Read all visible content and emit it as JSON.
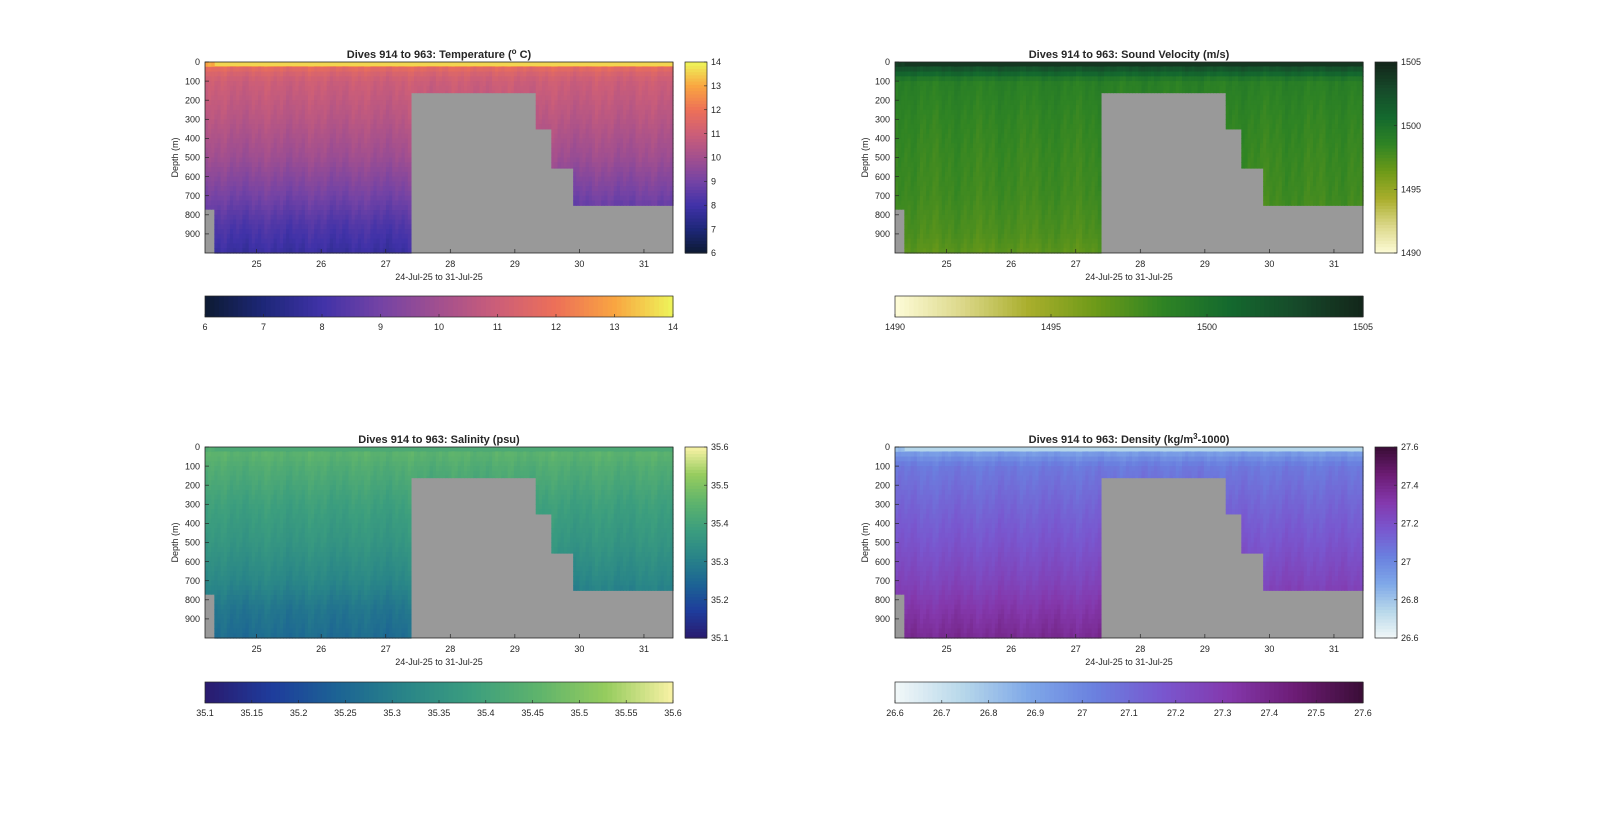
{
  "chart_data": [
    {
      "type": "heatmap",
      "title": "Dives 914 to 963: Temperature (° C)",
      "title_parts": {
        "pre": "Dives 914 to 963: Temperature (",
        "sup": "o",
        "post": " C)"
      },
      "xlabel": "24-Jul-25 to 31-Jul-25",
      "ylabel": "Depth (m)",
      "xlim": [
        24.2,
        31.45
      ],
      "ylim": [
        0,
        1000
      ],
      "x_ticks": [
        25,
        26,
        27,
        28,
        29,
        30,
        31
      ],
      "y_ticks": [
        0,
        100,
        200,
        300,
        400,
        500,
        600,
        700,
        800,
        900
      ],
      "colorbar_v": {
        "range": [
          6,
          14
        ],
        "ticks": [
          6,
          7,
          8,
          9,
          10,
          11,
          12,
          13,
          14
        ]
      },
      "colorbar_h": {
        "range": [
          6,
          14
        ],
        "ticks": [
          6,
          7,
          8,
          9,
          10,
          11,
          12,
          13,
          14
        ]
      },
      "colormap": [
        "#0d1a32",
        "#1d2778",
        "#4032a8",
        "#7443a5",
        "#a24f8f",
        "#cc5e78",
        "#ed7058",
        "#f9a541",
        "#eef55a"
      ],
      "surface_value": 13.6,
      "value_profile": [
        [
          0,
          13.6
        ],
        [
          40,
          11.5
        ],
        [
          100,
          11.0
        ],
        [
          300,
          10.5
        ],
        [
          500,
          9.9
        ],
        [
          700,
          9.0
        ],
        [
          850,
          8.3
        ],
        [
          1000,
          7.8
        ]
      ],
      "nodata_color": "#999999"
    },
    {
      "type": "heatmap",
      "title": "Dives 914 to 963: Sound Velocity (m/s)",
      "title_parts": {
        "pre": "Dives 914 to 963: Sound Velocity (m/s)",
        "sup": "",
        "post": ""
      },
      "xlabel": "24-Jul-25 to 31-Jul-25",
      "ylabel": "Depth (m)",
      "xlim": [
        24.2,
        31.45
      ],
      "ylim": [
        0,
        1000
      ],
      "x_ticks": [
        25,
        26,
        27,
        28,
        29,
        30,
        31
      ],
      "y_ticks": [
        0,
        100,
        200,
        300,
        400,
        500,
        600,
        700,
        800,
        900
      ],
      "colorbar_v": {
        "range": [
          1490,
          1505
        ],
        "ticks": [
          1490,
          1495,
          1500,
          1505
        ]
      },
      "colorbar_h": {
        "range": [
          1490,
          1505
        ],
        "ticks": [
          1490,
          1495,
          1500,
          1505
        ]
      },
      "colormap": [
        "#fefcd8",
        "#dcd88a",
        "#a9ae2c",
        "#6d9a18",
        "#2f8424",
        "#14692e",
        "#164a2a",
        "#13261a"
      ],
      "surface_value": 1504.0,
      "value_profile": [
        [
          0,
          1504
        ],
        [
          40,
          1502
        ],
        [
          100,
          1499
        ],
        [
          300,
          1498.5
        ],
        [
          500,
          1498.2
        ],
        [
          700,
          1498
        ],
        [
          900,
          1497.5
        ],
        [
          1000,
          1497
        ]
      ],
      "nodata_color": "#999999"
    },
    {
      "type": "heatmap",
      "title": "Dives 914 to 963: Salinity (psu)",
      "title_parts": {
        "pre": "Dives 914 to 963: Salinity (psu)",
        "sup": "",
        "post": ""
      },
      "xlabel": "24-Jul-25 to 31-Jul-25",
      "ylabel": "Depth (m)",
      "xlim": [
        24.2,
        31.45
      ],
      "ylim": [
        0,
        1000
      ],
      "x_ticks": [
        25,
        26,
        27,
        28,
        29,
        30,
        31
      ],
      "y_ticks": [
        0,
        100,
        200,
        300,
        400,
        500,
        600,
        700,
        800,
        900
      ],
      "colorbar_v": {
        "range": [
          35.1,
          35.6
        ],
        "ticks": [
          35.1,
          35.2,
          35.3,
          35.4,
          35.5,
          35.6
        ]
      },
      "colorbar_h": {
        "range": [
          35.1,
          35.6
        ],
        "ticks": [
          35.1,
          35.15,
          35.2,
          35.25,
          35.3,
          35.35,
          35.4,
          35.45,
          35.5,
          35.55,
          35.6
        ]
      },
      "colormap": [
        "#2a1a6e",
        "#1e3c9c",
        "#1c6494",
        "#298588",
        "#3c9e7e",
        "#5fb46c",
        "#96cc5e",
        "#f9f2a6"
      ],
      "surface_value": 35.42,
      "value_profile": [
        [
          0,
          35.42
        ],
        [
          40,
          35.45
        ],
        [
          100,
          35.43
        ],
        [
          300,
          35.39
        ],
        [
          500,
          35.36
        ],
        [
          700,
          35.32
        ],
        [
          850,
          35.28
        ],
        [
          1000,
          35.26
        ]
      ],
      "nodata_color": "#999999"
    },
    {
      "type": "heatmap",
      "title": "Dives 914 to 963: Density (kg/m³-1000)",
      "title_parts": {
        "pre": "Dives 914 to 963: Density (kg/m",
        "sup": "3",
        "post": "-1000)"
      },
      "xlabel": "24-Jul-25 to 31-Jul-25",
      "ylabel": "Depth (m)",
      "xlim": [
        24.2,
        31.45
      ],
      "ylim": [
        0,
        1000
      ],
      "x_ticks": [
        25,
        26,
        27,
        28,
        29,
        30,
        31
      ],
      "y_ticks": [
        0,
        100,
        200,
        300,
        400,
        500,
        600,
        700,
        800,
        900
      ],
      "colorbar_v": {
        "range": [
          26.6,
          27.6
        ],
        "ticks": [
          26.6,
          26.8,
          27,
          27.2,
          27.4,
          27.6
        ]
      },
      "colorbar_h": {
        "range": [
          26.6,
          27.6
        ],
        "ticks": [
          26.6,
          26.7,
          26.8,
          26.9,
          27,
          27.1,
          27.2,
          27.3,
          27.4,
          27.5,
          27.6
        ]
      },
      "colormap": [
        "#f2f8f8",
        "#b8d8ea",
        "#7fa8e8",
        "#6a80df",
        "#7957cf",
        "#8438ac",
        "#6c1c74",
        "#3a0d36"
      ],
      "surface_value": 26.75,
      "value_profile": [
        [
          0,
          26.75
        ],
        [
          40,
          26.95
        ],
        [
          100,
          27.05
        ],
        [
          300,
          27.12
        ],
        [
          500,
          27.18
        ],
        [
          700,
          27.25
        ],
        [
          850,
          27.32
        ],
        [
          1000,
          27.38
        ]
      ],
      "nodata_color": "#999999"
    }
  ],
  "data_coverage": {
    "segments": [
      {
        "x": [
          24.2,
          24.35
        ],
        "max_depth": 770
      },
      {
        "x": [
          24.35,
          27.4
        ],
        "max_depth": 1000
      },
      {
        "x": [
          27.4,
          29.3
        ],
        "max_depth": 160
      },
      {
        "x": [
          29.3,
          29.58
        ],
        "max_depth": 350
      },
      {
        "x": [
          29.58,
          29.88
        ],
        "max_depth": 555
      },
      {
        "x": [
          29.88,
          31.45
        ],
        "max_depth": 750
      }
    ]
  }
}
